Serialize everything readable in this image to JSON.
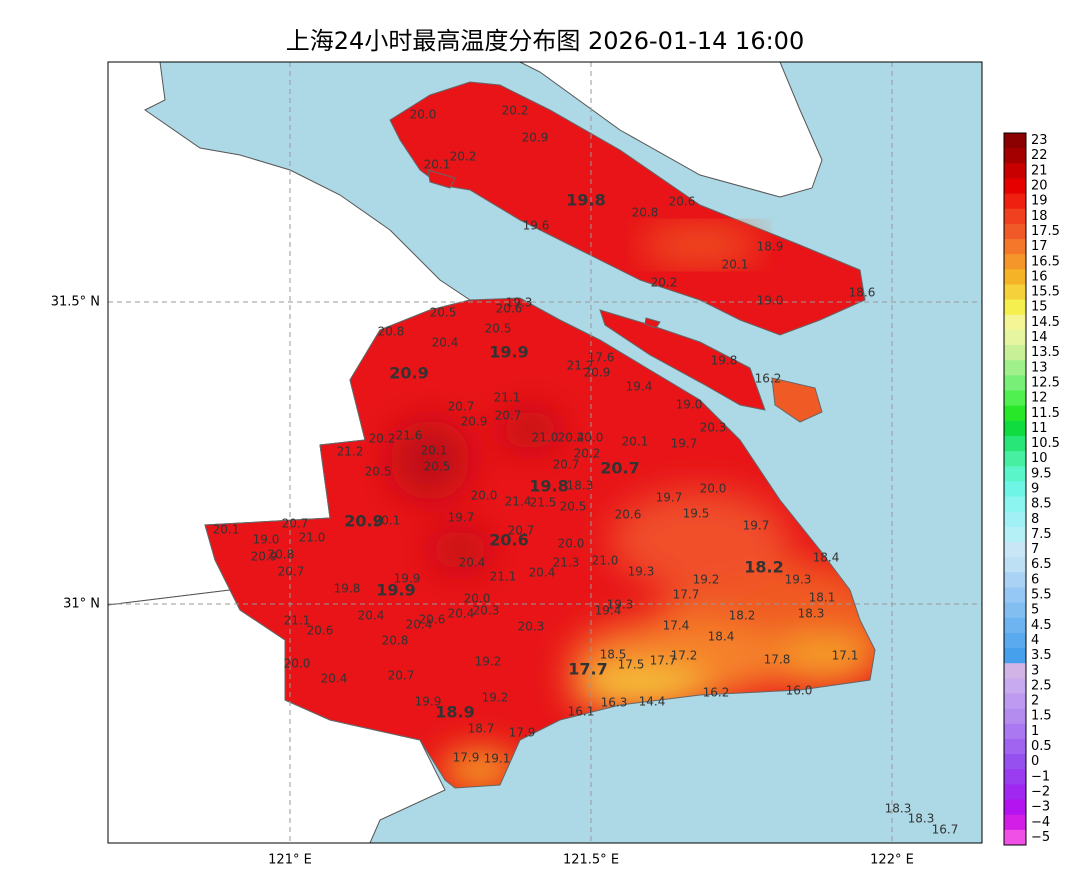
{
  "title": "上海24小时最高温度分布图 2026-01-14 16:00",
  "axes": {
    "y_labels": [
      "31.5° N",
      "31° N"
    ],
    "x_labels": [
      "121° E",
      "121.5° E",
      "122° E"
    ]
  },
  "stations": [
    "20.0",
    "20.2",
    "20.9",
    "20.1",
    "20.2",
    "19.8",
    "20.8",
    "20.6",
    "19.6",
    "18.9",
    "20.1",
    "20.2",
    "19.0",
    "18.6",
    "19.3",
    "20.5",
    "20.6",
    "20.5",
    "20.8",
    "20.4",
    "19.9",
    "20.9",
    "17.6",
    "21.2",
    "20.9",
    "19.4",
    "19.8",
    "16.2",
    "21.1",
    "19.0",
    "20.7",
    "20.7",
    "20.9",
    "20.3",
    "20.2",
    "21.6",
    "21.0",
    "20.4",
    "20.0",
    "20.1",
    "19.7",
    "21.2",
    "20.1",
    "20.2",
    "20.5",
    "20.7",
    "20.5",
    "20.7",
    "19.8",
    "18.3",
    "20.0",
    "20.0",
    "21.4",
    "21.5",
    "19.7",
    "20.5",
    "19.7",
    "20.6",
    "19.5",
    "20.1",
    "20.7",
    "20.9",
    "20.1",
    "19.7",
    "20.7",
    "21.0",
    "20.6",
    "19.0",
    "20.0",
    "20.9",
    "20.8",
    "18.4",
    "21.3",
    "21.0",
    "20.4",
    "18.2",
    "20.7",
    "19.3",
    "20.4",
    "21.1",
    "19.3",
    "19.2",
    "19.9",
    "19.8",
    "19.9",
    "17.7",
    "18.1",
    "20.0",
    "20.3",
    "20.4",
    "19.3",
    "19.4",
    "20.4",
    "18.2",
    "18.3",
    "20.6",
    "20.4",
    "21.1",
    "20.6",
    "17.4",
    "20.3",
    "18.4",
    "20.8",
    "18.5",
    "17.2",
    "17.8",
    "17.1",
    "17.7",
    "17.5",
    "17.7",
    "20.0",
    "19.2",
    "20.4",
    "20.7",
    "16.2",
    "16.0",
    "19.9",
    "19.2",
    "16.3",
    "14.4",
    "18.9",
    "16.1",
    "18.7",
    "17.9",
    "17.9",
    "19.1",
    "18.3",
    "18.3",
    "16.7"
  ],
  "colorbar": {
    "labels": [
      "23",
      "22",
      "21",
      "20",
      "19",
      "18",
      "17.5",
      "17",
      "16.5",
      "16",
      "15.5",
      "15",
      "14.5",
      "14",
      "13.5",
      "13",
      "12.5",
      "12",
      "11.5",
      "11",
      "10.5",
      "10",
      "9.5",
      "9",
      "8.5",
      "8",
      "7.5",
      "7",
      "6.5",
      "6",
      "5.5",
      "5",
      "4.5",
      "4",
      "3.5",
      "3",
      "2.5",
      "2",
      "1.5",
      "1",
      "0.5",
      "0",
      "−1",
      "−2",
      "−3",
      "−4",
      "−5"
    ]
  }
}
